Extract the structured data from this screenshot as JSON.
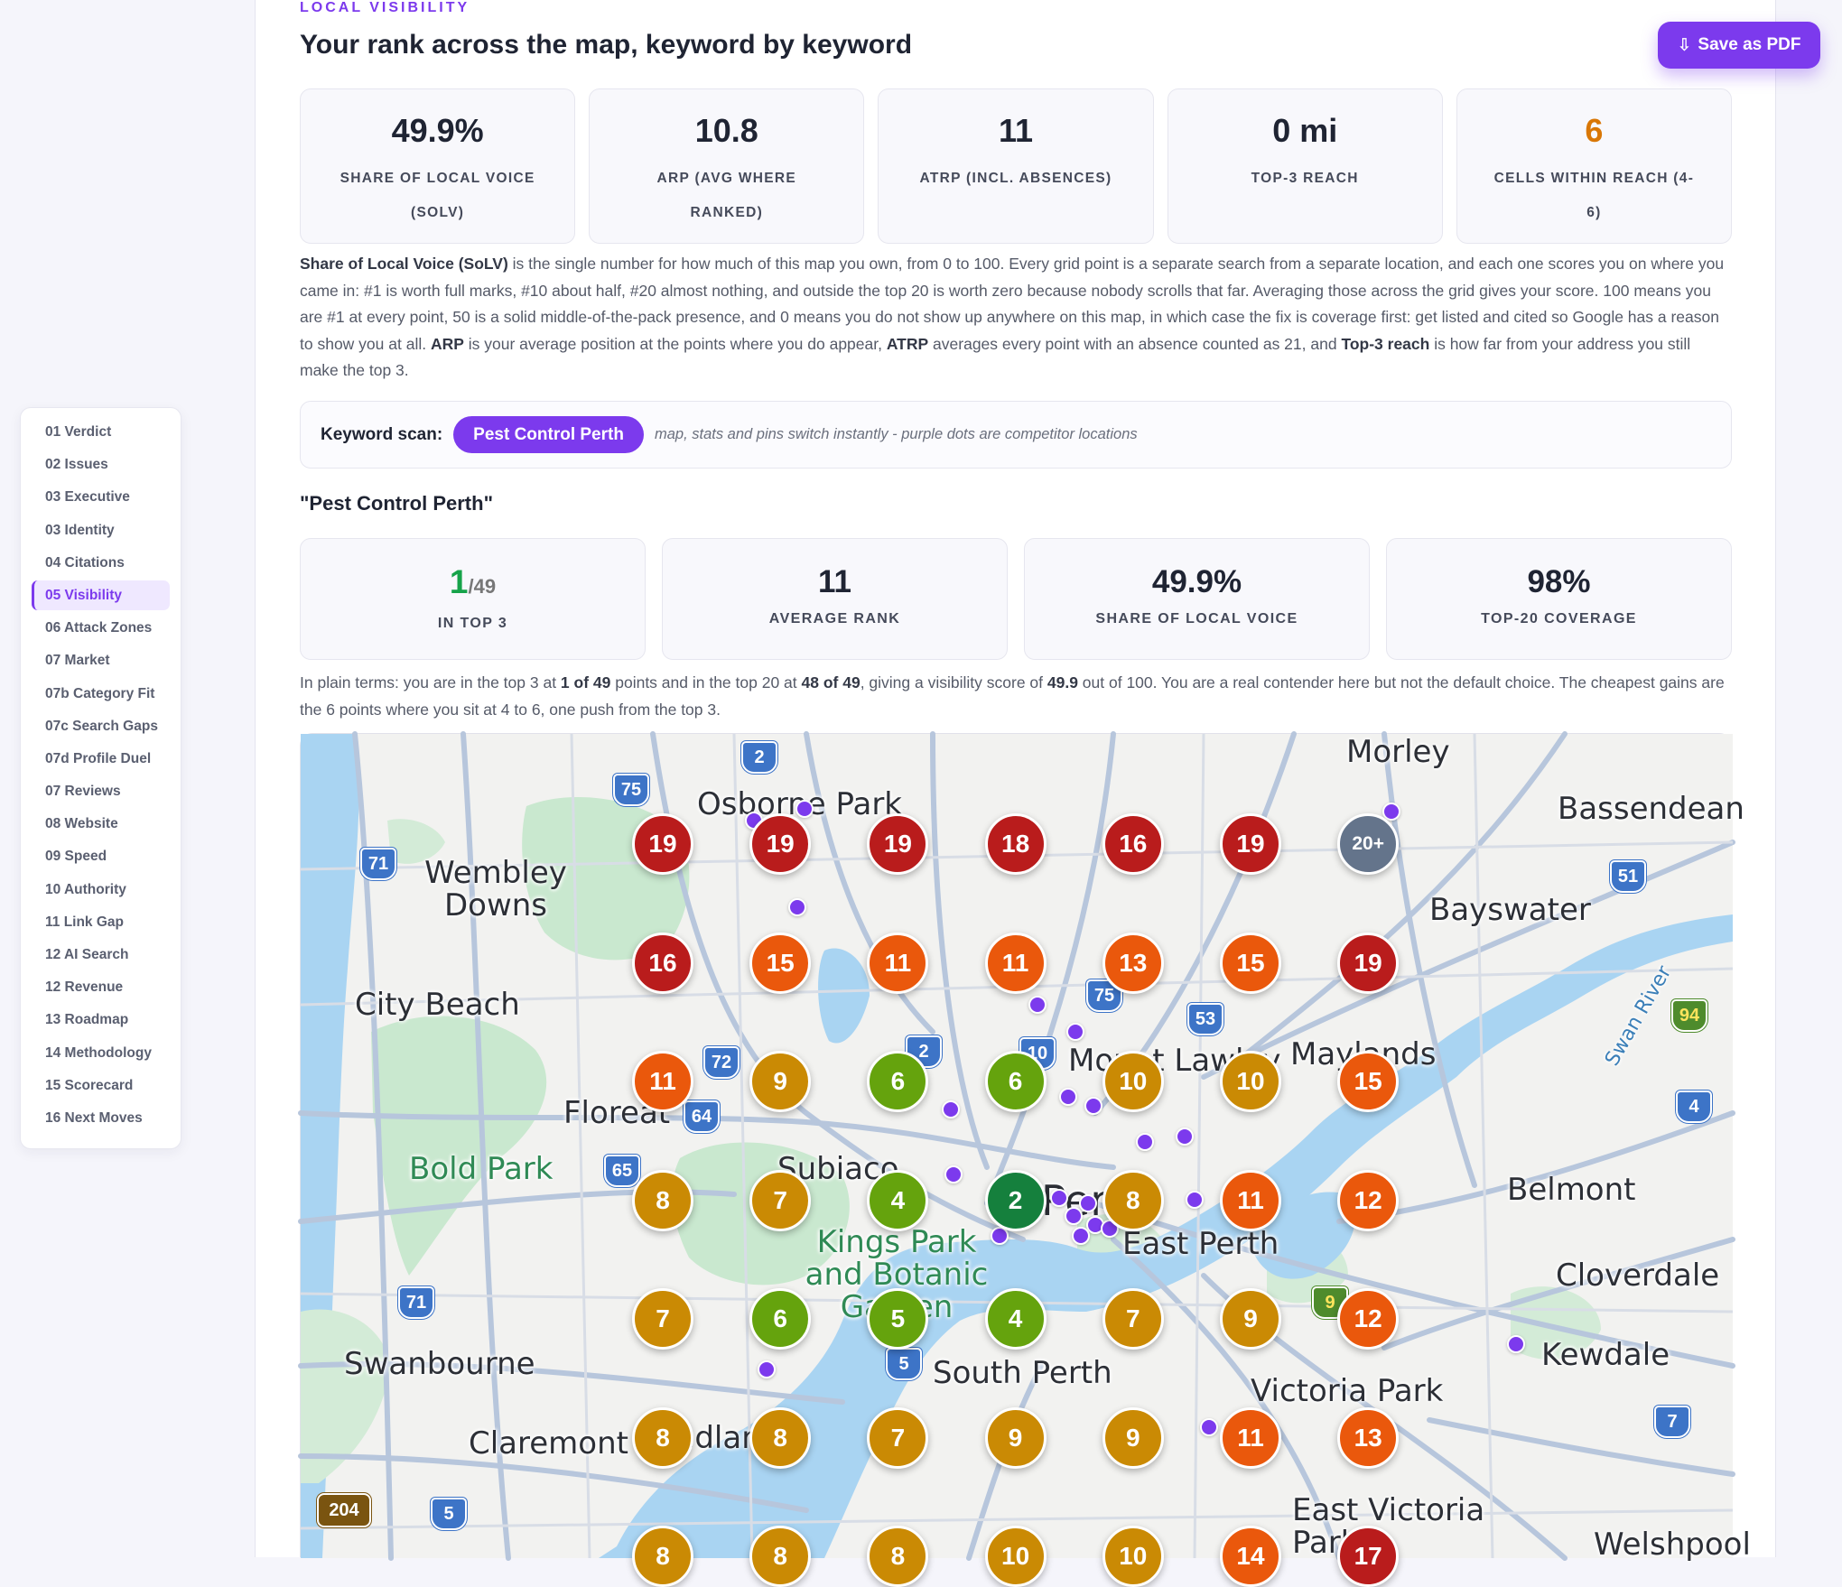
{
  "header": {
    "eyebrow": "LOCAL VISIBILITY",
    "title": "Your rank across the map, keyword by keyword",
    "pdf_label": "Save as PDF",
    "pdf_icon": "⇩"
  },
  "sidebar": {
    "items": [
      {
        "label": "01 Verdict"
      },
      {
        "label": "02 Issues"
      },
      {
        "label": "03 Executive"
      },
      {
        "label": "03 Identity"
      },
      {
        "label": "04 Citations"
      },
      {
        "label": "05 Visibility",
        "active": true
      },
      {
        "label": "06 Attack Zones"
      },
      {
        "label": "07 Market"
      },
      {
        "label": "07b Category Fit"
      },
      {
        "label": "07c Search Gaps"
      },
      {
        "label": "07d Profile Duel"
      },
      {
        "label": "07 Reviews"
      },
      {
        "label": "08 Website"
      },
      {
        "label": "09 Speed"
      },
      {
        "label": "10 Authority"
      },
      {
        "label": "11 Link Gap"
      },
      {
        "label": "12 AI Search"
      },
      {
        "label": "12 Revenue"
      },
      {
        "label": "13 Roadmap"
      },
      {
        "label": "14 Methodology"
      },
      {
        "label": "15 Scorecard"
      },
      {
        "label": "16 Next Moves"
      }
    ]
  },
  "summary_stats": [
    {
      "value": "49.9%",
      "label": "SHARE OF LOCAL VOICE (SOLV)"
    },
    {
      "value": "10.8",
      "label": "ARP (AVG WHERE RANKED)"
    },
    {
      "value": "11",
      "label": "ATRP (INCL. ABSENCES)"
    },
    {
      "value": "0 mi",
      "label": "TOP-3 REACH"
    },
    {
      "value": "6",
      "label": "CELLS WITHIN REACH (4-6)",
      "color": "#d97706"
    }
  ],
  "explanation": {
    "solv_term": "Share of Local Voice (SoLV)",
    "solv_text": " is the single number for how much of this map you own, from 0 to 100. Every grid point is a separate search from a separate location, and each one scores you on where you came in: #1 is worth full marks, #10 about half, #20 almost nothing, and outside the top 20 is worth zero because nobody scrolls that far. Averaging those across the grid gives your score. 100 means you are #1 at every point, 50 is a solid middle-of-the-pack presence, and 0 means you do not show up anywhere on this map, in which case the fix is coverage first: get listed and cited so Google has a reason to show you at all. ",
    "arp_term": "ARP",
    "arp_text": " is your average position at the points where you do appear, ",
    "atrp_term": "ATRP",
    "atrp_text": " averages every point with an absence counted as 21, and ",
    "top3_term": "Top-3 reach",
    "top3_text": " is how far from your address you still make the top 3."
  },
  "keyword_scan": {
    "label": "Keyword scan:",
    "keyword": "Pest Control Perth",
    "note": "map, stats and pins switch instantly - purple dots are competitor locations"
  },
  "keyword_section": {
    "heading": "\"Pest Control Perth\"",
    "stats": {
      "in_top3_value": "1",
      "in_top3_total": "/49",
      "in_top3_label": "IN TOP 3",
      "avg_rank_value": "11",
      "avg_rank_label": "AVERAGE RANK",
      "solv_value": "49.9%",
      "solv_label": "SHARE OF LOCAL VOICE",
      "coverage_value": "98%",
      "coverage_label": "TOP-20 COVERAGE"
    },
    "plain": {
      "t1": "In plain terms: you are in the top 3 at ",
      "b1": "1 of 49",
      "t2": " points and in the top 20 at ",
      "b2": "48 of 49",
      "t3": ", giving a visibility score of ",
      "b3": "49.9",
      "t4": " out of 100. You are a real contender here but not the default choice. The cheapest gains are the 6 points where you sit at 4 to 6, one push from the top 3."
    }
  },
  "map": {
    "place_labels": [
      "Morley",
      "Bassendean",
      "Osborne Park",
      "Wembley Downs",
      "Bayswater",
      "City Beach",
      "Mount Lawley",
      "Maylands",
      "Floreat",
      "Bold Park",
      "Subiaco",
      "Belmont",
      "Perth",
      "East Perth",
      "Kings Park and Botanic Garden",
      "Cloverdale",
      "Kewdale",
      "Swanbourne",
      "South Perth",
      "Victoria Park",
      "Claremont",
      "Nedlands",
      "East Victoria Park",
      "Welshpool",
      "Swan River"
    ],
    "route_shields": [
      "2",
      "75",
      "71",
      "51",
      "75",
      "53",
      "72",
      "2",
      "10",
      "94",
      "64",
      "65",
      "4",
      "71",
      "5",
      "7",
      "5",
      "204",
      "9"
    ],
    "rank_grid": [
      [
        "19",
        "19",
        "19",
        "18",
        "16",
        "19",
        "20+"
      ],
      [
        "16",
        "15",
        "11",
        "11",
        "13",
        "15",
        "19"
      ],
      [
        "11",
        "9",
        "6",
        "6",
        "10",
        "10",
        "15"
      ],
      [
        "8",
        "7",
        "4",
        "2",
        "8",
        "11",
        "12"
      ],
      [
        "7",
        "6",
        "5",
        "4",
        "7",
        "9",
        "12"
      ],
      [
        "8",
        "8",
        "7",
        "9",
        "9",
        "11",
        "13"
      ],
      [
        "8",
        "8",
        "8",
        "10",
        "10",
        "14",
        "17"
      ]
    ],
    "rank_colors": {
      "top3": "#15803d",
      "r4_6": "#65a30d",
      "r7_10": "#ca8a04",
      "r11_15": "#ea580c",
      "r16_20": "#b91c1c",
      "absent": "#64748b"
    }
  }
}
